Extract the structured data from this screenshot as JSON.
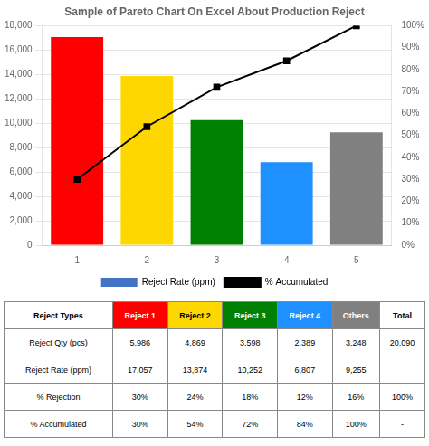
{
  "chart_data": {
    "type": "bar",
    "title": "Sample of Pareto Chart On Excel About Production Reject",
    "categories": [
      1,
      2,
      3,
      4,
      5
    ],
    "series": [
      {
        "name": "Reject Rate (ppm)",
        "type": "bar",
        "color": "#4472C4",
        "colors": [
          "#FF0000",
          "#FFD700",
          "#008000",
          "#1E90FF",
          "#808080"
        ],
        "values": [
          17057,
          13874,
          10252,
          6807,
          9255
        ]
      },
      {
        "name": "% Accumulated",
        "type": "line",
        "axis": "y2",
        "color": "#000000",
        "marker": "square",
        "values": [
          30,
          54,
          72,
          84,
          100
        ]
      }
    ],
    "ylim": [
      0,
      18000
    ],
    "yticks": [
      0,
      {
        "value": 2000,
        "label": "2,000"
      },
      {
        "value": 4000,
        "label": "4,000"
      },
      {
        "value": 6000,
        "label": "6,000"
      },
      {
        "value": 8000,
        "label": "8,000"
      },
      {
        "value": 10000,
        "label": "10,000"
      },
      {
        "value": 12000,
        "label": "12,000"
      },
      {
        "value": 14000,
        "label": "14,000"
      },
      {
        "value": 16000,
        "label": "16,000"
      },
      {
        "value": 18000,
        "label": "18,000"
      }
    ],
    "y2lim": [
      0,
      100
    ],
    "y2ticks": [
      {
        "value": 0,
        "label": "0%"
      },
      {
        "value": 10,
        "label": "10%"
      },
      {
        "value": 20,
        "label": "20%"
      },
      {
        "value": 30,
        "label": "30%"
      },
      {
        "value": 40,
        "label": "40%"
      },
      {
        "value": 50,
        "label": "50%"
      },
      {
        "value": 60,
        "label": "60%"
      },
      {
        "value": 70,
        "label": "70%"
      },
      {
        "value": 80,
        "label": "80%"
      },
      {
        "value": 90,
        "label": "90%"
      },
      {
        "value": 100,
        "label": "100%"
      }
    ],
    "grid": true,
    "legend": "bottom",
    "table": {
      "headers": [
        "Reject Types",
        "Reject 1",
        "Reject 2",
        "Reject 3",
        "Reject 4",
        "Others",
        "Total"
      ],
      "header_colors": [
        "#FFFFFF",
        "#FF0000",
        "#FFD700",
        "#008000",
        "#1E90FF",
        "#808080",
        "#FFFFFF"
      ],
      "rows": [
        [
          "Reject Qty (pcs)",
          "5,986",
          "4,869",
          "3,598",
          "2,389",
          "3,248",
          "20,090"
        ],
        [
          "Reject Rate (ppm)",
          "17,057",
          "13,874",
          "10,252",
          "6,807",
          "9,255",
          ""
        ],
        [
          "% Rejection",
          "30%",
          "24%",
          "18%",
          "12%",
          "16%",
          "100%"
        ],
        [
          "% Accumulated",
          "30%",
          "54%",
          "72%",
          "84%",
          "100%",
          "-"
        ]
      ]
    }
  }
}
